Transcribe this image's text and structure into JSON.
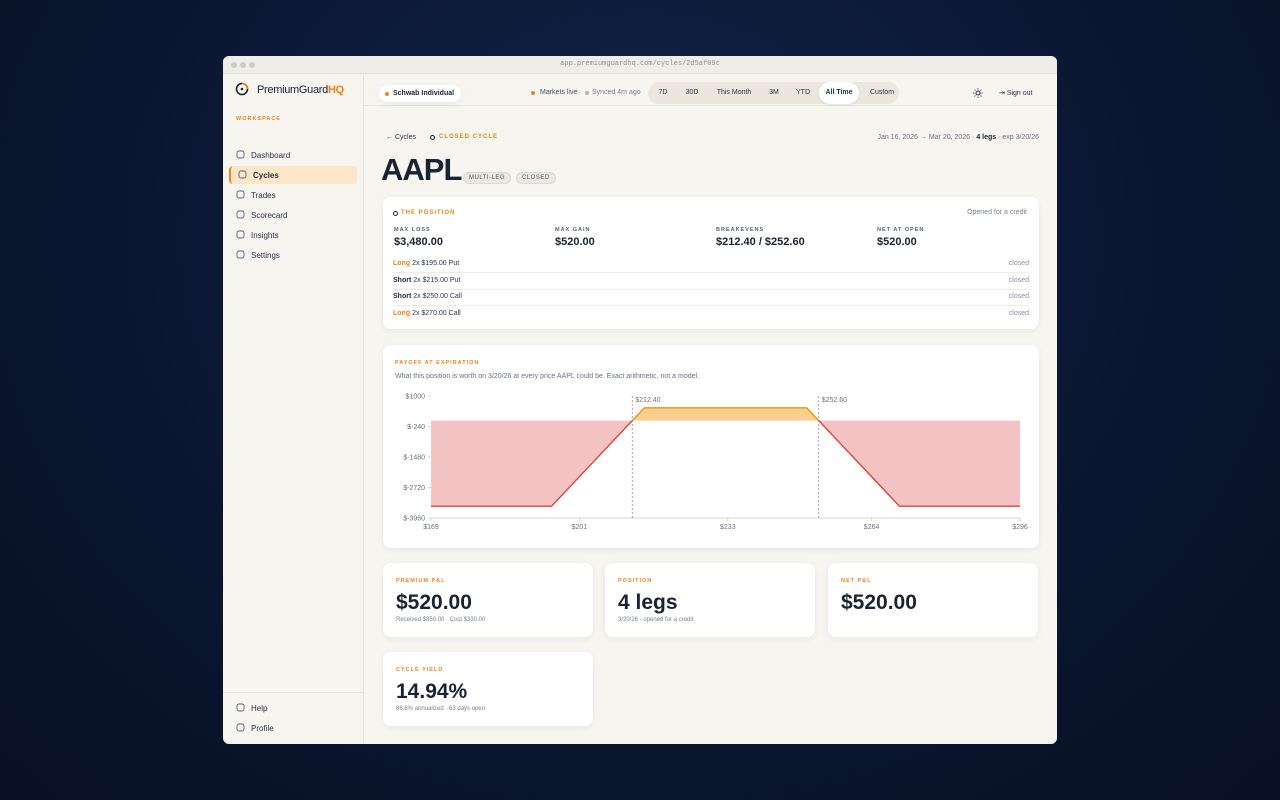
{
  "browser": {
    "url": "app.premiumguardhq.com/cycles/2d5af09c"
  },
  "brand": {
    "name": "PremiumGuard",
    "suffix": "HQ"
  },
  "sidebar": {
    "section": "WORKSPACE",
    "active": 1,
    "items": [
      "Dashboard",
      "Cycles",
      "Trades",
      "Scorecard",
      "Insights",
      "Settings"
    ],
    "footer": [
      "Help",
      "Profile"
    ]
  },
  "topbar": {
    "account": "Schwab Individual",
    "status": "Markets live",
    "sync": "Synced 4m ago",
    "ranges": [
      "7D",
      "30D",
      "This Month",
      "3M",
      "YTD",
      "All Time",
      "Custom"
    ],
    "selected_range": 5,
    "sign_out": "Sign out"
  },
  "header": {
    "back": "Cycles",
    "state": "CLOSED CYCLE",
    "dates": "Jan 16, 2026 → Mar 20, 2026 ·",
    "legs": "4 legs",
    "exp": "· exp 3/20/26",
    "ticker": "AAPL",
    "badges": [
      "MULTI-LEG",
      "CLOSED"
    ]
  },
  "position": {
    "title": "THE POSITION",
    "note": "Opened for a credit",
    "stats": [
      {
        "label": "MAX LOSS",
        "value": "$3,480.00"
      },
      {
        "label": "MAX GAIN",
        "value": "$520.00"
      },
      {
        "label": "BREAKEVENS",
        "value": "$212.40 / $252.60"
      },
      {
        "label": "NET AT OPEN",
        "value": "$520.00"
      }
    ],
    "legs": [
      {
        "side": "Long",
        "color": "#e8841a",
        "desc": "2x $195.00 Put",
        "status": "closed"
      },
      {
        "side": "Short",
        "color": "#1a2233",
        "desc": "2x $215.00 Put",
        "status": "closed"
      },
      {
        "side": "Short",
        "color": "#1a2233",
        "desc": "2x $250.00 Call",
        "status": "closed"
      },
      {
        "side": "Long",
        "color": "#e8841a",
        "desc": "2x $270.00 Call",
        "status": "closed"
      }
    ]
  },
  "payoff": {
    "title": "PAYOFF AT EXPIRATION",
    "subtitle": "What this position is worth on 3/20/26 at every price AAPL could be. Exact arithmetic, not a model."
  },
  "chart_data": {
    "type": "line",
    "x": [
      169,
      195,
      212.4,
      215,
      250,
      252.6,
      270,
      296
    ],
    "values": [
      -3480,
      -3480,
      0,
      520,
      520,
      0,
      -3480,
      -3480
    ],
    "color": "#e0443a",
    "gain_color": "#e8941a",
    "loss_fill": "#f4c4c4",
    "gain_fill": "#f9cf8e",
    "xlim": [
      169,
      296
    ],
    "ylim": [
      -3960,
      1000
    ],
    "xticks": [
      {
        "value": 169,
        "label": "$169"
      },
      {
        "value": 201,
        "label": "$201"
      },
      {
        "value": 233,
        "label": "$233"
      },
      {
        "value": 264,
        "label": "$264"
      },
      {
        "value": 296,
        "label": "$296"
      }
    ],
    "yticks": [
      {
        "value": 1000,
        "label": "$1000"
      },
      {
        "value": -240,
        "label": "$-240"
      },
      {
        "value": -1480,
        "label": "$-1480"
      },
      {
        "value": -2720,
        "label": "$-2720"
      },
      {
        "value": -3960,
        "label": "$-3960"
      }
    ],
    "annotations": [
      {
        "x": 212.4,
        "label": "$212.40"
      },
      {
        "x": 252.6,
        "label": "$252.60"
      }
    ]
  },
  "summary": [
    {
      "label": "PREMIUM P&L",
      "value": "$520.00",
      "sub": "Received $850.00 · Cost $330.00"
    },
    {
      "label": "POSITION",
      "value": "4 legs",
      "sub": "3/20/26 · opened for a credit"
    },
    {
      "label": "NET P&L",
      "value": "$520.00"
    },
    {
      "label": "CYCLE YIELD",
      "value": "14.94%",
      "sub": "86.6% annualized · 63 days open"
    }
  ]
}
